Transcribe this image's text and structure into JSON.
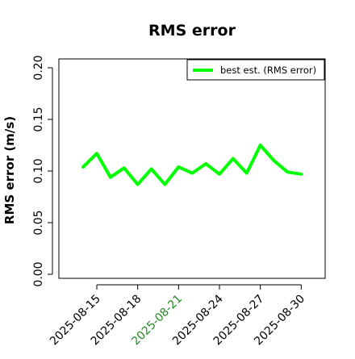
{
  "chart_data": {
    "type": "line",
    "title": "RMS error",
    "xlabel": "",
    "ylabel": "RMS error (m/s)",
    "x_ticks": [
      "2025-08-15",
      "2025-08-18",
      "2025-08-21",
      "2025-08-24",
      "2025-08-27",
      "2025-08-30"
    ],
    "highlighted_x_tick": "2025-08-21",
    "highlight_color": "#228b22",
    "y_ticks": [
      "0.00",
      "0.05",
      "0.10",
      "0.15",
      "0.20"
    ],
    "ylim": [
      0,
      0.2
    ],
    "grid": false,
    "legend_position": "top-right",
    "series": [
      {
        "name": "best est. (RMS error)",
        "color": "#00ff00",
        "x": [
          "2025-08-14",
          "2025-08-15",
          "2025-08-16",
          "2025-08-17",
          "2025-08-18",
          "2025-08-19",
          "2025-08-20",
          "2025-08-21",
          "2025-08-22",
          "2025-08-23",
          "2025-08-24",
          "2025-08-25",
          "2025-08-26",
          "2025-08-27",
          "2025-08-28",
          "2025-08-29",
          "2025-08-30"
        ],
        "y": [
          0.104,
          0.117,
          0.094,
          0.103,
          0.087,
          0.102,
          0.087,
          0.104,
          0.098,
          0.107,
          0.097,
          0.112,
          0.098,
          0.125,
          0.11,
          0.099,
          0.097
        ]
      }
    ]
  }
}
